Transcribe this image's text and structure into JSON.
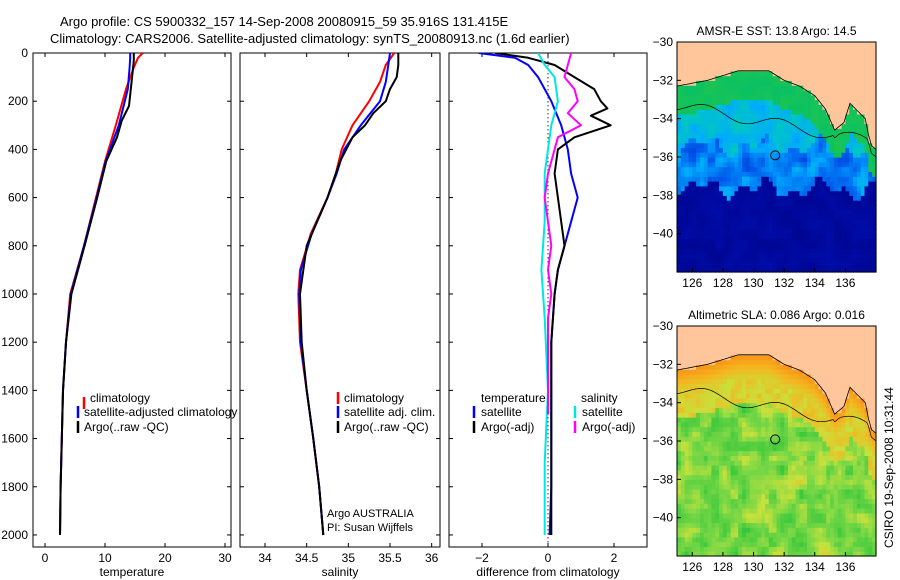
{
  "header": {
    "line1": "Argo profile: CS 5900332_157 14-Sep-2008 20080915_59 35.916S 131.415E",
    "line2": "Climatology: CARS2006. Satellite-adjusted climatology: synTS_20080913.nc (1.6d earlier)"
  },
  "colors": {
    "climatology": "#ff0000",
    "satellite": "#0000ff",
    "argo": "#000000",
    "cyan": "#00e5e5",
    "magenta": "#ff00ff",
    "land": "#ffc69c"
  },
  "chart_data": [
    {
      "type": "line",
      "id": "temperature",
      "xlabel": "temperature",
      "ylabel": "",
      "xlim": [
        -2,
        31
      ],
      "ylim": [
        2050,
        0
      ],
      "xticks": [
        0,
        10,
        20,
        30
      ],
      "yticks": [
        0,
        200,
        400,
        600,
        800,
        1000,
        1200,
        1400,
        1600,
        1800,
        2000
      ],
      "legend": {
        "position": "bottom-right",
        "entries": [
          "climatology",
          "satellite-adjusted climatology",
          "Argo(..raw -QC)"
        ]
      },
      "series": [
        {
          "name": "climatology",
          "color": "#ff0000",
          "depth": [
            0,
            20,
            60,
            150,
            300,
            450,
            600,
            800,
            1000,
            1200,
            1400,
            1600,
            1800,
            2000
          ],
          "values": [
            16.3,
            15.5,
            14.8,
            13.5,
            11.8,
            10.0,
            8.5,
            6.5,
            4.2,
            3.5,
            3.0,
            2.8,
            2.6,
            2.5
          ]
        },
        {
          "name": "satellite-adjusted climatology",
          "color": "#0000ff",
          "depth": [
            0,
            20,
            60,
            150,
            300,
            450,
            600,
            800,
            1000,
            1200,
            1400,
            1600,
            1800,
            2000
          ],
          "values": [
            14.2,
            14.2,
            14.1,
            13.8,
            12.3,
            10.1,
            8.6,
            6.5,
            4.3,
            3.5,
            3.0,
            2.8,
            2.6,
            2.5
          ]
        },
        {
          "name": "Argo(..raw -QC)",
          "color": "#000000",
          "depth": [
            0,
            30,
            80,
            150,
            220,
            280,
            350,
            450,
            600,
            800,
            1000,
            1200,
            1400,
            1600,
            1800,
            2000
          ],
          "values": [
            14.8,
            14.8,
            14.6,
            14.3,
            14.0,
            12.8,
            12.0,
            10.2,
            8.7,
            6.6,
            4.4,
            3.5,
            3.0,
            2.8,
            2.6,
            2.5
          ]
        }
      ]
    },
    {
      "type": "line",
      "id": "salinity",
      "xlabel": "salinity",
      "ylabel": "",
      "xlim": [
        33.7,
        36.1
      ],
      "ylim": [
        2050,
        0
      ],
      "xticks": [
        34,
        34.5,
        35,
        35.5,
        36
      ],
      "xticklabels": [
        "34",
        "34.5",
        "35",
        "35.5",
        "36"
      ],
      "legend": {
        "position": "bottom-right",
        "entries": [
          "climatology",
          "satellite adj. clim.",
          "Argo(..raw -QC)"
        ]
      },
      "annotation": [
        "Argo AUSTRALIA",
        "PI: Susan Wijffels"
      ],
      "series": [
        {
          "name": "climatology",
          "color": "#ff0000",
          "depth": [
            0,
            50,
            120,
            200,
            300,
            400,
            500,
            600,
            750,
            900,
            1000,
            1200,
            1400,
            1600,
            1800,
            2000
          ],
          "values": [
            35.55,
            35.45,
            35.38,
            35.25,
            35.05,
            34.92,
            34.85,
            34.75,
            34.55,
            34.42,
            34.4,
            34.42,
            34.5,
            34.58,
            34.65,
            34.7
          ]
        },
        {
          "name": "satellite adj. clim.",
          "color": "#0000ff",
          "depth": [
            0,
            50,
            120,
            200,
            300,
            400,
            500,
            600,
            750,
            900,
            1000,
            1200,
            1400,
            1600,
            1800,
            2000
          ],
          "values": [
            35.5,
            35.48,
            35.45,
            35.38,
            35.15,
            34.95,
            34.86,
            34.75,
            34.56,
            34.43,
            34.41,
            34.43,
            34.5,
            34.58,
            34.65,
            34.7
          ]
        },
        {
          "name": "Argo(..raw -QC)",
          "color": "#000000",
          "depth": [
            0,
            50,
            100,
            150,
            200,
            250,
            300,
            350,
            450,
            600,
            800,
            1000,
            1200,
            1400,
            1600,
            1800,
            2000
          ],
          "values": [
            35.6,
            35.6,
            35.58,
            35.5,
            35.45,
            35.3,
            35.2,
            35.05,
            34.9,
            34.75,
            34.5,
            34.42,
            34.44,
            34.5,
            34.58,
            34.65,
            34.7
          ]
        }
      ]
    },
    {
      "type": "line",
      "id": "difference",
      "xlabel": "difference from climatology",
      "ylabel": "",
      "xlim": [
        -3,
        3
      ],
      "ylim": [
        2050,
        0
      ],
      "xticks": [
        -2,
        0,
        2
      ],
      "xticklabels": [
        "−2",
        "0",
        "2"
      ],
      "legend": {
        "position": "bottom",
        "headers": [
          "temperature",
          "salinity"
        ],
        "entries": [
          "satellite",
          "Argo(-adj)",
          "satellite",
          "Argo(-adj)"
        ]
      },
      "series": [
        {
          "name": "temperature satellite",
          "color": "#0000ff",
          "depth": [
            0,
            20,
            50,
            100,
            200,
            300,
            400,
            500,
            600,
            700,
            800,
            900,
            1000,
            1200,
            1400,
            1600,
            1800,
            2000
          ],
          "values": [
            -2.1,
            -1.0,
            -0.6,
            -0.3,
            0.1,
            0.4,
            0.6,
            0.7,
            0.9,
            0.7,
            0.5,
            0.3,
            0.2,
            0.1,
            0.1,
            0.1,
            0.1,
            0.05
          ]
        },
        {
          "name": "temperature Argo(-adj)",
          "color": "#000000",
          "depth": [
            0,
            20,
            50,
            100,
            150,
            200,
            230,
            260,
            300,
            350,
            400,
            500,
            600,
            700,
            800,
            900,
            1000,
            1200,
            1400,
            1600,
            1800,
            2000
          ],
          "values": [
            -1.6,
            -0.6,
            0.2,
            0.8,
            1.4,
            1.6,
            1.8,
            1.3,
            1.9,
            0.8,
            0.3,
            0.2,
            0.3,
            0.4,
            0.5,
            0.3,
            0.2,
            0.1,
            0.1,
            0.1,
            0.1,
            0.1
          ]
        },
        {
          "name": "salinity satellite",
          "color": "#00e5e5",
          "depth": [
            0,
            50,
            100,
            200,
            300,
            400,
            500,
            700,
            900,
            1100,
            1400,
            1700,
            2000
          ],
          "values": [
            -0.3,
            -0.1,
            0.2,
            0.3,
            0.1,
            0.0,
            -0.1,
            -0.1,
            -0.2,
            -0.1,
            0.0,
            -0.1,
            -0.1
          ]
        },
        {
          "name": "salinity Argo(-adj)",
          "color": "#ff00ff",
          "depth": [
            0,
            50,
            100,
            150,
            200,
            250,
            300,
            350,
            400,
            500,
            600,
            700,
            800,
            900,
            1000,
            1100,
            1300,
            1500
          ],
          "values": [
            0.7,
            0.6,
            0.5,
            0.8,
            0.9,
            0.6,
            1.0,
            0.3,
            0.2,
            0.0,
            -0.1,
            0.0,
            0.1,
            0.0,
            0.1,
            0.0,
            0.0,
            0.0
          ]
        }
      ]
    },
    {
      "type": "heatmap",
      "id": "sst-map",
      "title": "AMSR-E SST: 13.8 Argo: 14.5",
      "xlim": [
        125,
        138
      ],
      "ylim": [
        -42,
        -30
      ],
      "xticks": [
        126,
        128,
        130,
        132,
        134,
        136
      ],
      "yticks": [
        -30,
        -32,
        -34,
        -36,
        -38,
        -40
      ],
      "yticklabels": [
        "−30",
        "−32",
        "−34",
        "−36",
        "−38",
        "−40"
      ],
      "marker": {
        "lon": 131.415,
        "lat": -35.916
      }
    },
    {
      "type": "heatmap",
      "id": "sla-map",
      "title": "Altimetric SLA: 0.086 Argo: 0.016",
      "xlim": [
        125,
        138
      ],
      "ylim": [
        -42,
        -30
      ],
      "xticks": [
        126,
        128,
        130,
        132,
        134,
        136
      ],
      "yticks": [
        -30,
        -32,
        -34,
        -36,
        -38,
        -40
      ],
      "yticklabels": [
        "−30",
        "−32",
        "−34",
        "−36",
        "−38",
        "−40"
      ],
      "marker": {
        "lon": 131.415,
        "lat": -35.916
      }
    }
  ],
  "credit": "CSIRO 19-Sep-2008 10:31:44"
}
